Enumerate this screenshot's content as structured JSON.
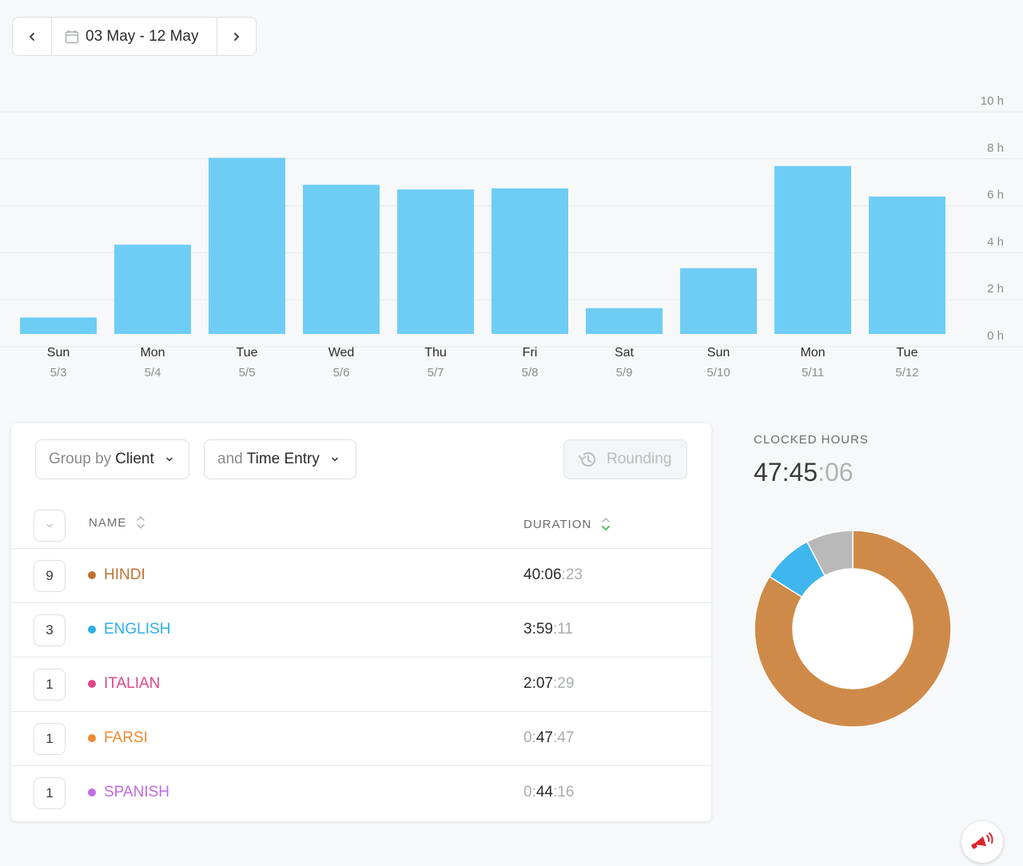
{
  "date_range": {
    "label": "03 May - 12 May"
  },
  "chart_data": {
    "type": "bar",
    "categories": [
      "Sun",
      "Mon",
      "Tue",
      "Wed",
      "Thu",
      "Fri",
      "Sat",
      "Sun",
      "Mon",
      "Tue"
    ],
    "dates": [
      "5/3",
      "5/4",
      "5/5",
      "5/6",
      "5/7",
      "5/8",
      "5/9",
      "5/10",
      "5/11",
      "5/12"
    ],
    "values": [
      0.7,
      3.8,
      7.5,
      6.35,
      6.15,
      6.2,
      1.1,
      2.8,
      7.15,
      5.85
    ],
    "y_ticks": [
      "10 h",
      "8 h",
      "6 h",
      "4 h",
      "2 h",
      "0 h"
    ],
    "ylim": [
      0,
      10
    ],
    "unit": "h",
    "color": "#6ecdf5",
    "grid": true
  },
  "filters": {
    "group_prefix": "Group by",
    "group_value": "Client",
    "sub_prefix": "and",
    "sub_value": "Time Entry",
    "rounding_label": "Rounding"
  },
  "table": {
    "col_name": "NAME",
    "col_duration": "DURATION",
    "rows": [
      {
        "count": "9",
        "name": "HINDI",
        "color": "#c0702e",
        "dur_lead": "",
        "dur_main": "40:06",
        "dur_sec": ":23"
      },
      {
        "count": "3",
        "name": "ENGLISH",
        "color": "#2eaee8",
        "dur_lead": "",
        "dur_main": "3:59",
        "dur_sec": ":11"
      },
      {
        "count": "1",
        "name": "ITALIAN",
        "color": "#e0468a",
        "dur_lead": "",
        "dur_main": "2:07",
        "dur_sec": ":29"
      },
      {
        "count": "1",
        "name": "FARSI",
        "color": "#f08a2e",
        "dur_lead": "0:",
        "dur_main": "47",
        "dur_sec": ":47"
      },
      {
        "count": "1",
        "name": "SPANISH",
        "color": "#c06ae6",
        "dur_lead": "0:",
        "dur_main": "44",
        "dur_sec": ":16"
      }
    ]
  },
  "clocked": {
    "label": "CLOCKED HOURS",
    "main": "47:45",
    "sec": ":06"
  },
  "donut_data": {
    "type": "pie",
    "slices": [
      {
        "value": 0.839,
        "color": "#cf8a49"
      },
      {
        "value": 0.084,
        "color": "#3fb6ee"
      },
      {
        "value": 0.077,
        "color": "#b9b9b9"
      }
    ]
  }
}
